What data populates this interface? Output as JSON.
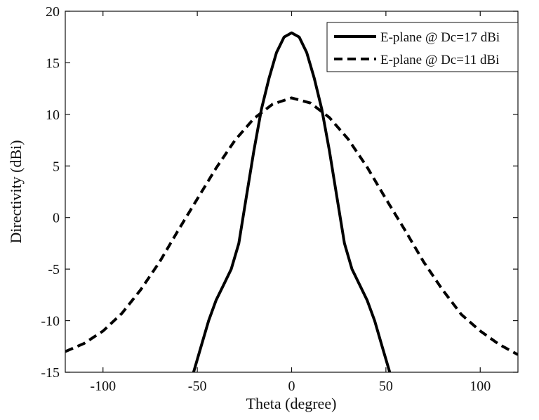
{
  "chart_data": {
    "type": "line",
    "title": "",
    "xlabel": "Theta (degree)",
    "ylabel": "Directivity (dBi)",
    "xlim": [
      -120,
      120
    ],
    "ylim": [
      -15,
      20
    ],
    "xticks": [
      -100,
      -50,
      0,
      50,
      100
    ],
    "yticks": [
      -15,
      -10,
      -5,
      0,
      5,
      10,
      15,
      20
    ],
    "xtick_labels": [
      "-100",
      "-50",
      "0",
      "50",
      "100"
    ],
    "ytick_labels": [
      "-15",
      "-10",
      "-5",
      "0",
      "5",
      "10",
      "15",
      "20"
    ],
    "grid": false,
    "legend_position": "top-right",
    "series": [
      {
        "name": "E-plane @ Dc=17 dBi",
        "style": "solid",
        "color": "#000000",
        "x": [
          -52,
          -48,
          -44,
          -40,
          -36,
          -32,
          -28,
          -24,
          -20,
          -16,
          -12,
          -8,
          -4,
          0,
          4,
          8,
          12,
          16,
          20,
          24,
          28,
          32,
          36,
          40,
          44,
          48,
          52
        ],
        "y": [
          -15,
          -12.5,
          -10,
          -8,
          -6.5,
          -5,
          -2.5,
          2,
          6.5,
          10.5,
          13.5,
          16,
          17.5,
          17.9,
          17.5,
          16,
          13.5,
          10.5,
          6.5,
          2,
          -2.5,
          -5,
          -6.5,
          -8,
          -10,
          -12.5,
          -15
        ]
      },
      {
        "name": "E-plane @ Dc=11 dBi",
        "style": "dashed",
        "color": "#000000",
        "x": [
          -120,
          -110,
          -100,
          -90,
          -80,
          -70,
          -60,
          -50,
          -40,
          -30,
          -20,
          -10,
          0,
          10,
          20,
          30,
          40,
          50,
          60,
          70,
          80,
          90,
          100,
          110,
          120
        ],
        "y": [
          -13,
          -12.2,
          -11,
          -9.3,
          -7,
          -4.3,
          -1.2,
          1.8,
          4.8,
          7.5,
          9.6,
          11,
          11.6,
          11.1,
          9.7,
          7.6,
          4.9,
          1.8,
          -1.2,
          -4.3,
          -7,
          -9.4,
          -11,
          -12.3,
          -13.3
        ]
      }
    ]
  }
}
